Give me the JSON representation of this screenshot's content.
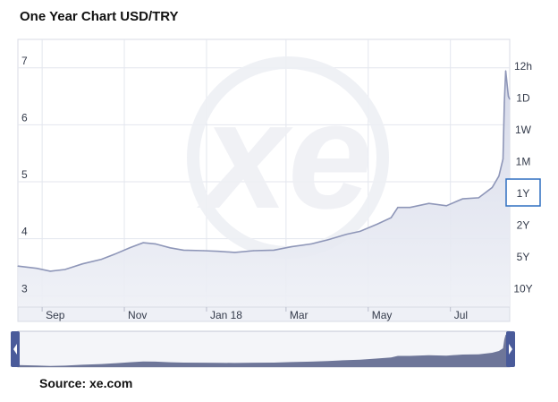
{
  "title": "One Year Chart USD/TRY",
  "source": "Source: xe.com",
  "watermark": "xe",
  "ranges": {
    "options": [
      "12h",
      "1D",
      "1W",
      "1M",
      "1Y",
      "2Y",
      "5Y",
      "10Y"
    ],
    "selected": "1Y"
  },
  "chart_data": {
    "type": "area",
    "title": "One Year Chart USD/TRY",
    "xlabel": "",
    "ylabel": "",
    "ylim": [
      2.8,
      7.5
    ],
    "yticks": [
      "3",
      "4",
      "5",
      "6",
      "7"
    ],
    "xticks": [
      "Sep",
      "Nov",
      "Jan 18",
      "Mar",
      "May",
      "Jul"
    ],
    "xtick_dates": [
      "2017-09-01",
      "2017-11-01",
      "2018-01-01",
      "2018-03-01",
      "2018-05-01",
      "2018-07-01"
    ],
    "xlim": [
      "2017-08-14",
      "2018-08-14"
    ],
    "grid": true,
    "colors": {
      "line": "#8e96b8",
      "fill": "#dfe2ee",
      "navigator_fill": "#6e7699",
      "accent": "#2f6fc0"
    },
    "series": [
      {
        "x": [
          "2017-08-14",
          "2017-08-28",
          "2017-09-07",
          "2017-09-18",
          "2017-10-01",
          "2017-10-15",
          "2017-10-25",
          "2017-11-05",
          "2017-11-15",
          "2017-11-24",
          "2017-12-05",
          "2017-12-15",
          "2017-12-30",
          "2018-01-10",
          "2018-01-22",
          "2018-02-05",
          "2018-02-20",
          "2018-03-05",
          "2018-03-20",
          "2018-04-01",
          "2018-04-15",
          "2018-04-25",
          "2018-05-08",
          "2018-05-18",
          "2018-05-23",
          "2018-06-01",
          "2018-06-15",
          "2018-06-28",
          "2018-07-10",
          "2018-07-22",
          "2018-08-01",
          "2018-08-06",
          "2018-08-09",
          "2018-08-10",
          "2018-08-11",
          "2018-08-13",
          "2018-08-14"
        ],
        "values": [
          3.52,
          3.48,
          3.43,
          3.46,
          3.56,
          3.64,
          3.73,
          3.84,
          3.93,
          3.91,
          3.84,
          3.8,
          3.79,
          3.78,
          3.76,
          3.79,
          3.8,
          3.86,
          3.91,
          3.98,
          4.08,
          4.13,
          4.26,
          4.37,
          4.55,
          4.55,
          4.62,
          4.58,
          4.7,
          4.72,
          4.9,
          5.1,
          5.4,
          6.4,
          6.95,
          6.5,
          6.45
        ]
      }
    ]
  }
}
